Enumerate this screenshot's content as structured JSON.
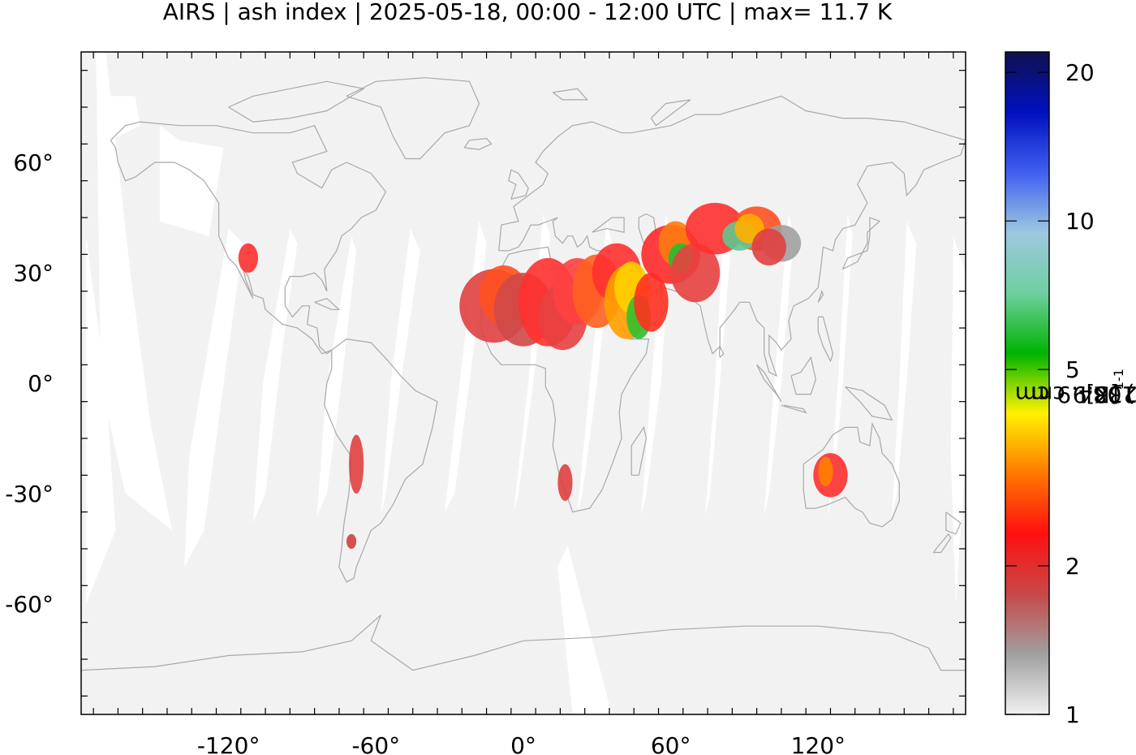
{
  "title": "AIRS | ash index | 2025-05-18, 00:00 - 12:00 UTC | max= 11.7 K",
  "map": {
    "projection": "equirectangular",
    "lon_range": [
      -180,
      180
    ],
    "lat_range": [
      -90,
      90
    ],
    "x_ticks": [
      {
        "value": -120,
        "label": "-120°"
      },
      {
        "value": -60,
        "label": "-60°"
      },
      {
        "value": 0,
        "label": "0°"
      },
      {
        "value": 60,
        "label": "60°"
      },
      {
        "value": 120,
        "label": "120°"
      }
    ],
    "y_ticks": [
      {
        "value": 60,
        "label": "60°"
      },
      {
        "value": 30,
        "label": "30°"
      },
      {
        "value": 0,
        "label": "0°"
      },
      {
        "value": -30,
        "label": "-30°"
      },
      {
        "value": -60,
        "label": "-60°"
      }
    ],
    "background_color": "#f2f2f2",
    "gap_color": "#ffffff",
    "coastline_color": "#a8a8a8",
    "signal_regions": [
      "Sahara",
      "Arabian Peninsula",
      "Middle East",
      "Central Asia / Taklamakan",
      "Western Australia",
      "Andes",
      "Namibia",
      "Southwest United States",
      "Patagonia"
    ]
  },
  "colorbar": {
    "scale": "log",
    "range": [
      1,
      22
    ],
    "ticks": [
      {
        "value": 1,
        "label": "1"
      },
      {
        "value": 2,
        "label": "2"
      },
      {
        "value": 5,
        "label": "5"
      },
      {
        "value": 10,
        "label": "10"
      },
      {
        "value": 20,
        "label": "20"
      }
    ],
    "label_parts": [
      "BT(1233.9 cm",
      "-1",
      ") - BT(1084.9 cm",
      "-1",
      ") [K]"
    ],
    "colors": [
      "#f0f0f0",
      "#a0a0a0",
      "#c84848",
      "#ff1010",
      "#ff7800",
      "#fff200",
      "#00b400",
      "#6ed0a0",
      "#9ec8e0",
      "#4060f0",
      "#0010c0",
      "#101050"
    ]
  }
}
